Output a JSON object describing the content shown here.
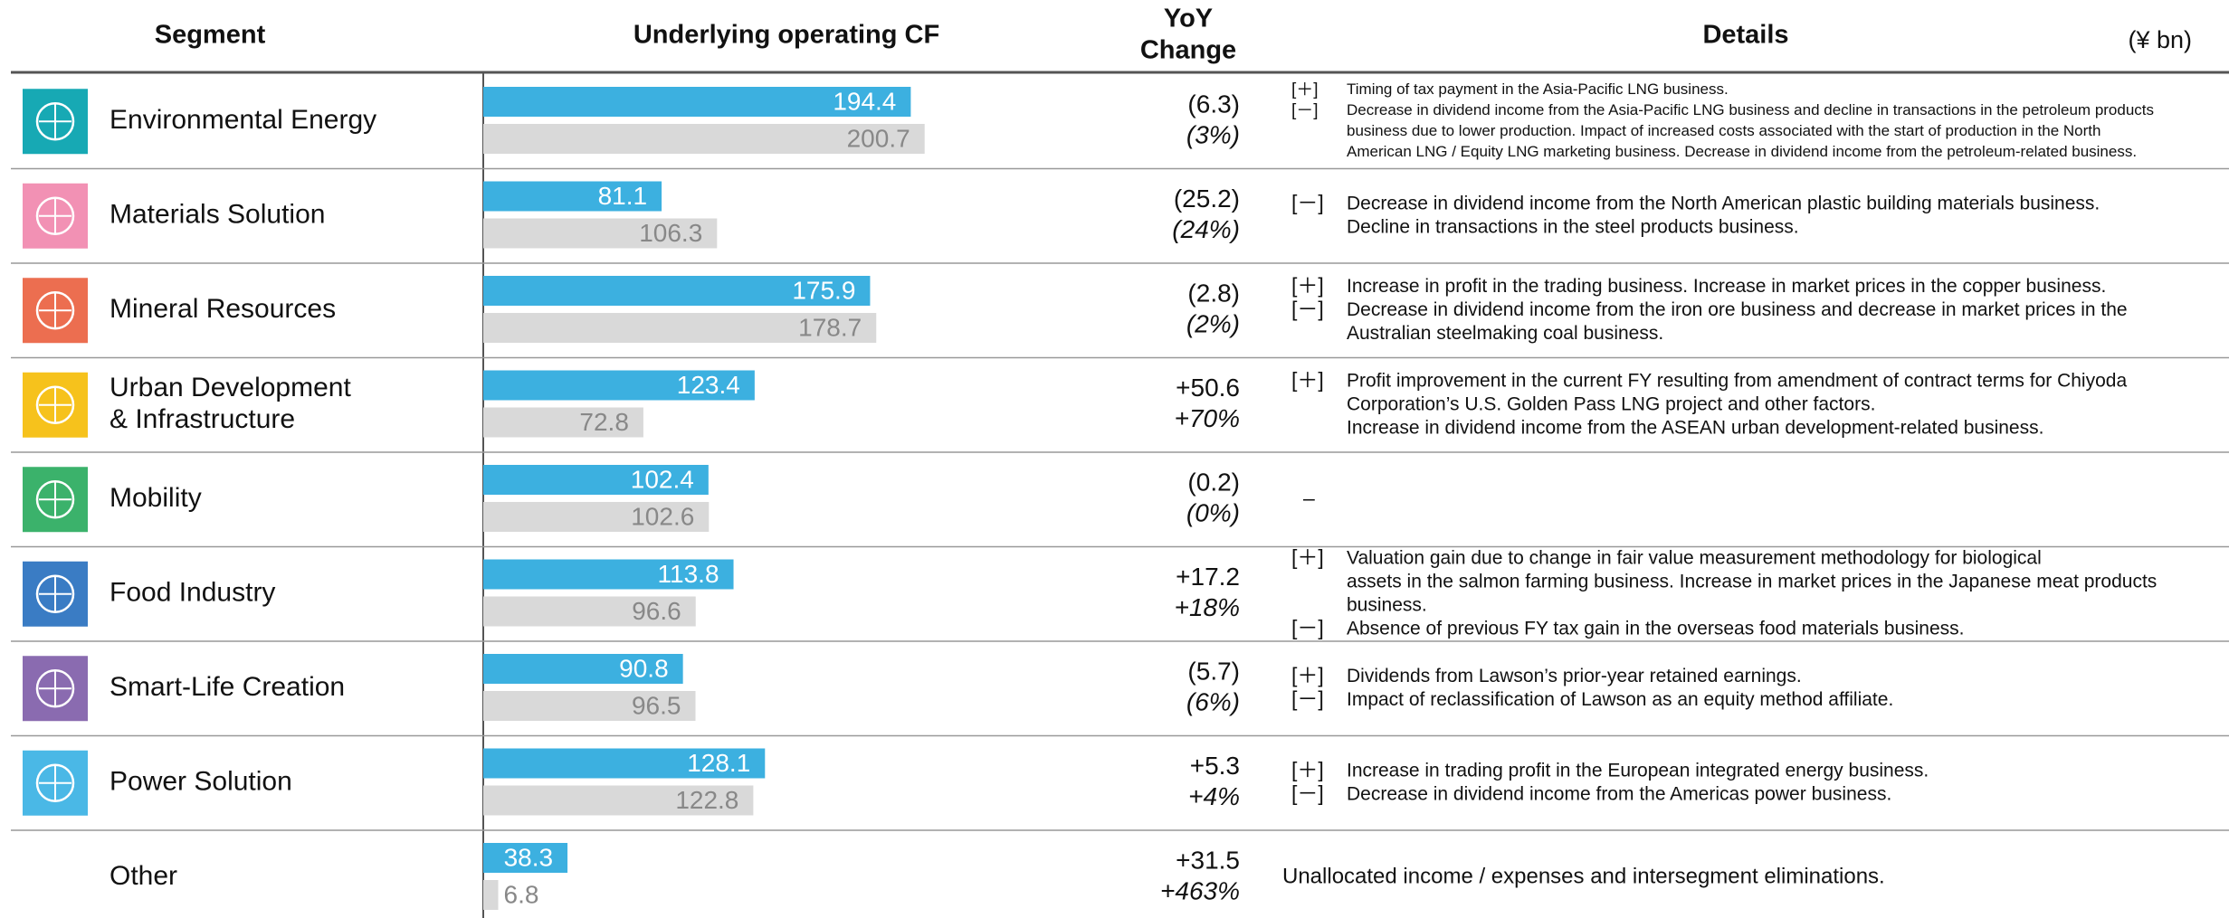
{
  "header": {
    "segment": "Segment",
    "cf": "Underlying operating CF",
    "yoy_line1": "YoY",
    "yoy_line2": "Change",
    "details": "Details",
    "unit": "(¥ bn)"
  },
  "rows": [
    {
      "segment": [
        "Environmental Energy"
      ],
      "icon_color": "#17a9b4",
      "current": 194.4,
      "previous": 200.7,
      "change": "(6.3)",
      "change_pct": "(3%)",
      "details": [
        {
          "sign": "[＋]",
          "lines": [
            "Timing of tax payment in the Asia-Pacific LNG business."
          ]
        },
        {
          "sign": "[－]",
          "lines": [
            "Decrease in dividend income from the Asia-Pacific LNG business and decline in transactions in the petroleum products",
            "business due to lower production. Impact of increased costs associated with the start of production in the North",
            "American LNG / Equity LNG marketing business. Decrease in dividend income from the petroleum-related business."
          ]
        }
      ]
    },
    {
      "segment": [
        "Materials Solution"
      ],
      "icon_color": "#f291b4",
      "current": 81.1,
      "previous": 106.3,
      "change": "(25.2)",
      "change_pct": "(24%)",
      "details": [
        {
          "sign": "[－]",
          "lines": [
            "Decrease in dividend income from the North American plastic building materials business.",
            "Decline in transactions in the steel products business."
          ]
        }
      ]
    },
    {
      "segment": [
        "Mineral Resources"
      ],
      "icon_color": "#ec6e50",
      "current": 175.9,
      "previous": 178.7,
      "change": "(2.8)",
      "change_pct": "(2%)",
      "details": [
        {
          "sign": "[＋]",
          "lines": [
            "Increase in profit in the trading business. Increase in market prices in the copper business."
          ]
        },
        {
          "sign": "[－]",
          "lines": [
            "Decrease in dividend income from the iron ore business and decrease in market prices in the",
            "Australian steelmaking coal business."
          ]
        }
      ]
    },
    {
      "segment": [
        "Urban Development",
        "& Infrastructure"
      ],
      "icon_color": "#f6c21c",
      "current": 123.4,
      "previous": 72.8,
      "change": "+50.6",
      "change_pct": "+70%",
      "details": [
        {
          "sign": "[＋]",
          "lines": [
            "Profit improvement in the current FY resulting from amendment of contract terms for Chiyoda",
            "Corporation’s U.S. Golden Pass LNG project and other factors.",
            "Increase in dividend income from the ASEAN urban development-related business."
          ]
        }
      ]
    },
    {
      "segment": [
        "Mobility"
      ],
      "icon_color": "#3bb26b",
      "current": 102.4,
      "previous": 102.6,
      "change": "(0.2)",
      "change_pct": "(0%)",
      "details": [
        {
          "sign": "–",
          "lines": []
        }
      ]
    },
    {
      "segment": [
        "Food Industry"
      ],
      "icon_color": "#3a7cc4",
      "current": 113.8,
      "previous": 96.6,
      "change": "+17.2",
      "change_pct": "+18%",
      "details": [
        {
          "sign": "[＋]",
          "lines": [
            "Valuation gain due to change in fair value measurement methodology for biological",
            "assets in the salmon farming business. Increase in market prices in the Japanese meat products",
            "business."
          ]
        },
        {
          "sign": "[－]",
          "lines": [
            "Absence of previous FY tax gain in the overseas food materials business."
          ]
        }
      ]
    },
    {
      "segment": [
        "Smart-Life Creation"
      ],
      "icon_color": "#8a6bb0",
      "current": 90.8,
      "previous": 96.5,
      "change": "(5.7)",
      "change_pct": "(6%)",
      "details": [
        {
          "sign": "[＋]",
          "lines": [
            "Dividends from Lawson’s prior-year retained earnings."
          ]
        },
        {
          "sign": "[－]",
          "lines": [
            "Impact of reclassification of Lawson as an equity method affiliate."
          ]
        }
      ]
    },
    {
      "segment": [
        "Power Solution"
      ],
      "icon_color": "#4ab8e6",
      "current": 128.1,
      "previous": 122.8,
      "change": "+5.3",
      "change_pct": "+4%",
      "details": [
        {
          "sign": "[＋]",
          "lines": [
            "Increase in trading profit in the European integrated energy business."
          ]
        },
        {
          "sign": "[－]",
          "lines": [
            "Decrease in dividend income from the Americas power business."
          ]
        }
      ]
    },
    {
      "segment": [
        "Other"
      ],
      "current": 38.3,
      "previous": 6.8,
      "change": "+31.5",
      "change_pct": "+463%",
      "details": [
        {
          "lines": [
            "Unallocated income / expenses and intersegment eliminations."
          ]
        }
      ]
    }
  ]
}
